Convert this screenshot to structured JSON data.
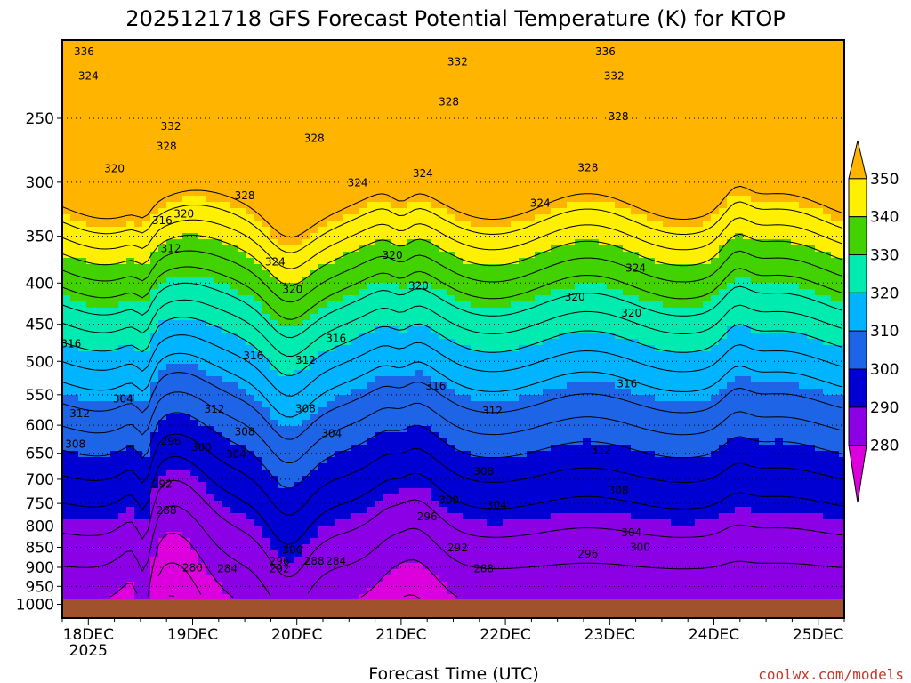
{
  "chart_data": {
    "type": "heatmap",
    "title": "2025121718 GFS Forecast Potential Temperature (K) for KTOP",
    "xlabel": "Forecast Time (UTC)",
    "ylabel": "",
    "credit": "coolwx.com/models",
    "x_ticks": [
      {
        "label": "18DEC",
        "hour": 6
      },
      {
        "label": "19DEC",
        "hour": 30
      },
      {
        "label": "20DEC",
        "hour": 54
      },
      {
        "label": "21DEC",
        "hour": 78
      },
      {
        "label": "22DEC",
        "hour": 102
      },
      {
        "label": "23DEC",
        "hour": 126
      },
      {
        "label": "24DEC",
        "hour": 150
      },
      {
        "label": "25DEC",
        "hour": 174
      }
    ],
    "x_year_label": "2025",
    "x_range_hours": [
      0,
      180
    ],
    "y_ticks": [
      250,
      300,
      350,
      400,
      450,
      500,
      550,
      600,
      650,
      700,
      750,
      800,
      850,
      900,
      950,
      1000
    ],
    "y_range_hPa": [
      200,
      1040
    ],
    "ground_level_hPa": 985,
    "colorbar": {
      "levels": [
        280,
        290,
        300,
        310,
        320,
        330,
        340,
        350
      ],
      "colors": [
        "#dc00dc",
        "#8c00e6",
        "#0000d2",
        "#1e64e6",
        "#00b4ff",
        "#00ebaf",
        "#41d200",
        "#fff000",
        "#ffb400"
      ],
      "extend": "both",
      "ground_color": "#a0522d"
    },
    "contour_interval_K": 4,
    "contour_labels": [
      {
        "text": "336",
        "hour": 5,
        "hPa": 207
      },
      {
        "text": "324",
        "hour": 6,
        "hPa": 222
      },
      {
        "text": "320",
        "hour": 12,
        "hPa": 289
      },
      {
        "text": "332",
        "hour": 25,
        "hPa": 256
      },
      {
        "text": "328",
        "hour": 24,
        "hPa": 271
      },
      {
        "text": "316",
        "hour": 23,
        "hPa": 335
      },
      {
        "text": "320",
        "hour": 28,
        "hPa": 329
      },
      {
        "text": "312",
        "hour": 25,
        "hPa": 363
      },
      {
        "text": "328",
        "hour": 42,
        "hPa": 312
      },
      {
        "text": "324",
        "hour": 49,
        "hPa": 377
      },
      {
        "text": "328",
        "hour": 58,
        "hPa": 265
      },
      {
        "text": "320",
        "hour": 53,
        "hPa": 408
      },
      {
        "text": "324",
        "hour": 68,
        "hPa": 301
      },
      {
        "text": "332",
        "hour": 91,
        "hPa": 213
      },
      {
        "text": "328",
        "hour": 89,
        "hPa": 239
      },
      {
        "text": "324",
        "hour": 83,
        "hPa": 293
      },
      {
        "text": "320",
        "hour": 82,
        "hPa": 404
      },
      {
        "text": "316",
        "hour": 2,
        "hPa": 476
      },
      {
        "text": "312",
        "hour": 4,
        "hPa": 581
      },
      {
        "text": "308",
        "hour": 3,
        "hPa": 634
      },
      {
        "text": "304",
        "hour": 14,
        "hPa": 557
      },
      {
        "text": "296",
        "hour": 25,
        "hPa": 629
      },
      {
        "text": "300",
        "hour": 32,
        "hPa": 640
      },
      {
        "text": "292",
        "hour": 23,
        "hPa": 711
      },
      {
        "text": "288",
        "hour": 24,
        "hPa": 766
      },
      {
        "text": "280",
        "hour": 30,
        "hPa": 902
      },
      {
        "text": "284",
        "hour": 38,
        "hPa": 905
      },
      {
        "text": "316",
        "hour": 44,
        "hPa": 493
      },
      {
        "text": "312",
        "hour": 35,
        "hPa": 574
      },
      {
        "text": "308",
        "hour": 42,
        "hPa": 612
      },
      {
        "text": "304",
        "hour": 40,
        "hPa": 653
      },
      {
        "text": "312",
        "hour": 56,
        "hPa": 499
      },
      {
        "text": "316",
        "hour": 63,
        "hPa": 469
      },
      {
        "text": "308",
        "hour": 56,
        "hPa": 573
      },
      {
        "text": "304",
        "hour": 62,
        "hPa": 615
      },
      {
        "text": "300",
        "hour": 53,
        "hPa": 858
      },
      {
        "text": "296",
        "hour": 50,
        "hPa": 885
      },
      {
        "text": "292",
        "hour": 50,
        "hPa": 905
      },
      {
        "text": "288",
        "hour": 58,
        "hPa": 885
      },
      {
        "text": "284",
        "hour": 63,
        "hPa": 885
      },
      {
        "text": "320",
        "hour": 76,
        "hPa": 370
      },
      {
        "text": "316",
        "hour": 86,
        "hPa": 537
      },
      {
        "text": "312",
        "hour": 99,
        "hPa": 577
      },
      {
        "text": "308",
        "hour": 97,
        "hPa": 685
      },
      {
        "text": "304",
        "hour": 100,
        "hPa": 755
      },
      {
        "text": "300",
        "hour": 89,
        "hPa": 744
      },
      {
        "text": "296",
        "hour": 84,
        "hPa": 780
      },
      {
        "text": "292",
        "hour": 91,
        "hPa": 852
      },
      {
        "text": "288",
        "hour": 97,
        "hPa": 905
      },
      {
        "text": "336",
        "hour": 125,
        "hPa": 207
      },
      {
        "text": "332",
        "hour": 127,
        "hPa": 222
      },
      {
        "text": "328",
        "hour": 128,
        "hPa": 249
      },
      {
        "text": "324",
        "hour": 110,
        "hPa": 319
      },
      {
        "text": "320",
        "hour": 118,
        "hPa": 417
      },
      {
        "text": "328",
        "hour": 121,
        "hPa": 288
      },
      {
        "text": "324",
        "hour": 132,
        "hPa": 384
      },
      {
        "text": "320",
        "hour": 131,
        "hPa": 436
      },
      {
        "text": "316",
        "hour": 130,
        "hPa": 534
      },
      {
        "text": "312",
        "hour": 124,
        "hPa": 645
      },
      {
        "text": "308",
        "hour": 128,
        "hPa": 724
      },
      {
        "text": "304",
        "hour": 131,
        "hPa": 816
      },
      {
        "text": "300",
        "hour": 133,
        "hPa": 851
      },
      {
        "text": "296",
        "hour": 121,
        "hPa": 867
      }
    ]
  }
}
